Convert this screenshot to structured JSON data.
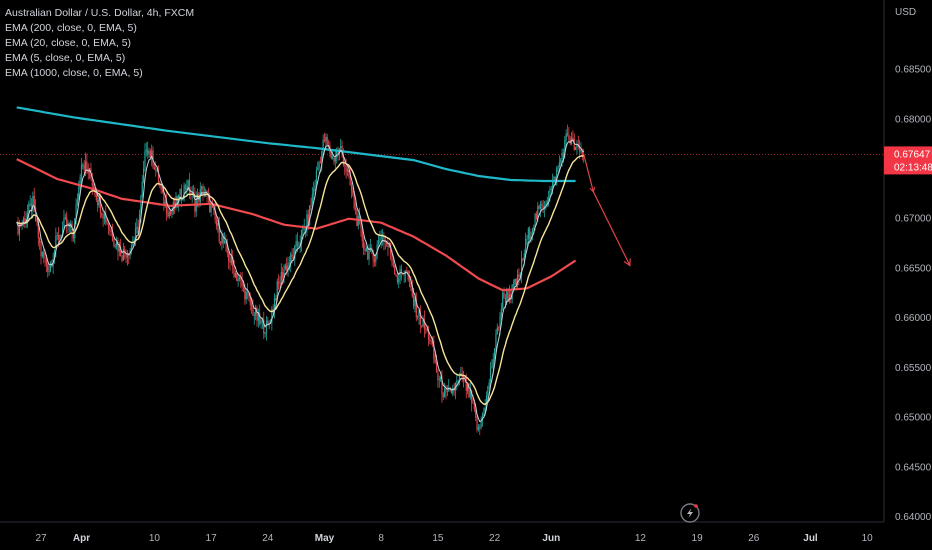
{
  "legend": {
    "title": "Australian Dollar / U.S. Dollar, 4h, FXCM",
    "lines": [
      "EMA (200, close, 0, EMA, 5)",
      "EMA (20, close, 0, EMA, 5)",
      "EMA (5, close, 0, EMA, 5)",
      "EMA (1000, close, 0, EMA, 5)"
    ]
  },
  "colors": {
    "background": "#000000",
    "ema200": "#f04a4f",
    "ema20": "#f7e69a",
    "ema5": "#c9d3d9",
    "ema1000": "#1fb8c9",
    "up": "#22a39a",
    "down": "#e0434b",
    "arrow": "#e0434b",
    "price_badge": "#f23645"
  },
  "chart_data": {
    "type": "line",
    "symbol": "AUDUSD",
    "currency_label": "USD",
    "y_range": [
      0.6395,
      0.692
    ],
    "y_ticks": [
      "0.68500",
      "0.68000",
      "0.67500",
      "0.67000",
      "0.66500",
      "0.66000",
      "0.65500",
      "0.65000",
      "0.64500",
      "0.64000"
    ],
    "x_ticks": [
      {
        "label": "27",
        "bold": false
      },
      {
        "label": "Apr",
        "bold": true
      },
      {
        "label": "10",
        "bold": false
      },
      {
        "label": "17",
        "bold": false
      },
      {
        "label": "24",
        "bold": false
      },
      {
        "label": "May",
        "bold": true
      },
      {
        "label": "8",
        "bold": false
      },
      {
        "label": "15",
        "bold": false
      },
      {
        "label": "22",
        "bold": false
      },
      {
        "label": "Jun",
        "bold": true
      },
      {
        "label": "12",
        "bold": false
      },
      {
        "label": "19",
        "bold": false
      },
      {
        "label": "26",
        "bold": false
      },
      {
        "label": "Jul",
        "bold": true
      },
      {
        "label": "10",
        "bold": false
      }
    ],
    "x_tick_day_index": [
      0,
      5,
      14,
      21,
      28,
      35,
      42,
      49,
      56,
      63,
      74,
      81,
      88,
      95,
      102
    ],
    "last_price": "0.67647",
    "countdown": "02:13:48",
    "series": [
      {
        "key": "price",
        "points": [
          [
            -3,
            0.669
          ],
          [
            -2,
            0.67
          ],
          [
            -1,
            0.6715
          ],
          [
            0,
            0.6665
          ],
          [
            1,
            0.665
          ],
          [
            2,
            0.668
          ],
          [
            3,
            0.6695
          ],
          [
            4,
            0.6685
          ],
          [
            5,
            0.676
          ],
          [
            6,
            0.6745
          ],
          [
            7,
            0.672
          ],
          [
            8,
            0.67
          ],
          [
            9,
            0.668
          ],
          [
            10,
            0.6665
          ],
          [
            11,
            0.667
          ],
          [
            12,
            0.669
          ],
          [
            13,
            0.6775
          ],
          [
            14,
            0.6755
          ],
          [
            15,
            0.672
          ],
          [
            16,
            0.6705
          ],
          [
            17,
            0.672
          ],
          [
            18,
            0.6735
          ],
          [
            19,
            0.6715
          ],
          [
            20,
            0.673
          ],
          [
            21,
            0.671
          ],
          [
            22,
            0.6685
          ],
          [
            23,
            0.6665
          ],
          [
            24,
            0.6645
          ],
          [
            25,
            0.663
          ],
          [
            26,
            0.661
          ],
          [
            27,
            0.6595
          ],
          [
            28,
            0.659
          ],
          [
            29,
            0.6625
          ],
          [
            30,
            0.665
          ],
          [
            31,
            0.666
          ],
          [
            32,
            0.668
          ],
          [
            33,
            0.67
          ],
          [
            34,
            0.6745
          ],
          [
            35,
            0.678
          ],
          [
            36,
            0.676
          ],
          [
            37,
            0.677
          ],
          [
            38,
            0.674
          ],
          [
            39,
            0.67
          ],
          [
            40,
            0.667
          ],
          [
            41,
            0.666
          ],
          [
            42,
            0.6685
          ],
          [
            43,
            0.667
          ],
          [
            44,
            0.664
          ],
          [
            45,
            0.665
          ],
          [
            46,
            0.6615
          ],
          [
            47,
            0.6595
          ],
          [
            48,
            0.658
          ],
          [
            49,
            0.654
          ],
          [
            50,
            0.652
          ],
          [
            51,
            0.653
          ],
          [
            52,
            0.654
          ],
          [
            53,
            0.652
          ],
          [
            54,
            0.6485
          ],
          [
            55,
            0.652
          ],
          [
            56,
            0.657
          ],
          [
            57,
            0.662
          ],
          [
            58,
            0.6625
          ],
          [
            59,
            0.664
          ],
          [
            60,
            0.668
          ],
          [
            61,
            0.67
          ],
          [
            62,
            0.6715
          ],
          [
            63,
            0.673
          ],
          [
            64,
            0.6755
          ],
          [
            65,
            0.6785
          ],
          [
            66,
            0.677
          ],
          [
            67,
            0.67647
          ]
        ]
      },
      {
        "key": "ema1000",
        "points": [
          [
            -3,
            0.6812
          ],
          [
            4,
            0.6802
          ],
          [
            10,
            0.6795
          ],
          [
            16,
            0.6788
          ],
          [
            22,
            0.6782
          ],
          [
            28,
            0.6776
          ],
          [
            34,
            0.6771
          ],
          [
            40,
            0.6765
          ],
          [
            46,
            0.6759
          ],
          [
            50,
            0.675
          ],
          [
            54,
            0.6743
          ],
          [
            58,
            0.6739
          ],
          [
            62,
            0.6738
          ],
          [
            66,
            0.6738
          ]
        ]
      },
      {
        "key": "ema200",
        "points": [
          [
            -3,
            0.676
          ],
          [
            2,
            0.674
          ],
          [
            6,
            0.6731
          ],
          [
            10,
            0.672
          ],
          [
            16,
            0.6713
          ],
          [
            21,
            0.6715
          ],
          [
            26,
            0.6705
          ],
          [
            30,
            0.6694
          ],
          [
            34,
            0.669
          ],
          [
            38,
            0.67
          ],
          [
            42,
            0.6696
          ],
          [
            46,
            0.6682
          ],
          [
            50,
            0.6663
          ],
          [
            54,
            0.664
          ],
          [
            57,
            0.6628
          ],
          [
            60,
            0.663
          ],
          [
            63,
            0.6642
          ],
          [
            66,
            0.6658
          ]
        ]
      }
    ],
    "projection": {
      "points": [
        [
          67,
          0.6765
        ],
        [
          68.2,
          0.6727
        ],
        [
          72.7,
          0.6653
        ]
      ]
    }
  }
}
